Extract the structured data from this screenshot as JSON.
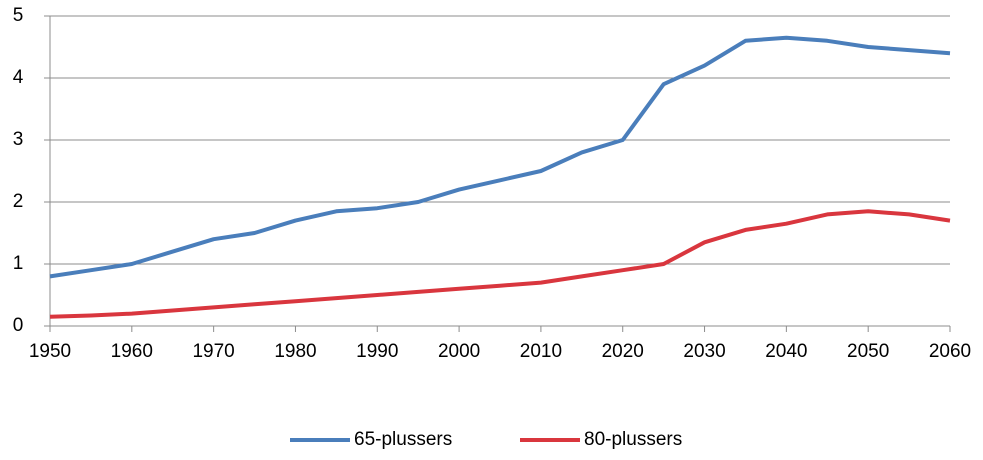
{
  "chart_data": {
    "type": "line",
    "x": [
      1950,
      1955,
      1960,
      1965,
      1970,
      1975,
      1980,
      1985,
      1990,
      1995,
      2000,
      2005,
      2010,
      2015,
      2020,
      2025,
      2030,
      2035,
      2040,
      2045,
      2050,
      2055,
      2060
    ],
    "series": [
      {
        "name": "65-plussers",
        "color": "#4a7ebb",
        "values": [
          0.8,
          0.9,
          1.0,
          1.2,
          1.4,
          1.5,
          1.7,
          1.85,
          1.9,
          2.0,
          2.2,
          2.35,
          2.5,
          2.8,
          3.0,
          3.9,
          4.2,
          4.6,
          4.65,
          4.6,
          4.5,
          4.45,
          4.4
        ]
      },
      {
        "name": "80-plussers",
        "color": "#d9363e",
        "values": [
          0.15,
          0.17,
          0.2,
          0.25,
          0.3,
          0.35,
          0.4,
          0.45,
          0.5,
          0.55,
          0.6,
          0.65,
          0.7,
          0.8,
          0.9,
          1.0,
          1.35,
          1.55,
          1.65,
          1.8,
          1.85,
          1.8,
          1.7
        ]
      }
    ],
    "xlim": [
      1950,
      2060
    ],
    "xticks": [
      1950,
      1960,
      1970,
      1980,
      1990,
      2000,
      2010,
      2020,
      2030,
      2040,
      2050,
      2060
    ],
    "ylim": [
      0,
      5
    ],
    "yticks": [
      0,
      1,
      2,
      3,
      4,
      5
    ],
    "grid": true,
    "legend": "bottom"
  }
}
